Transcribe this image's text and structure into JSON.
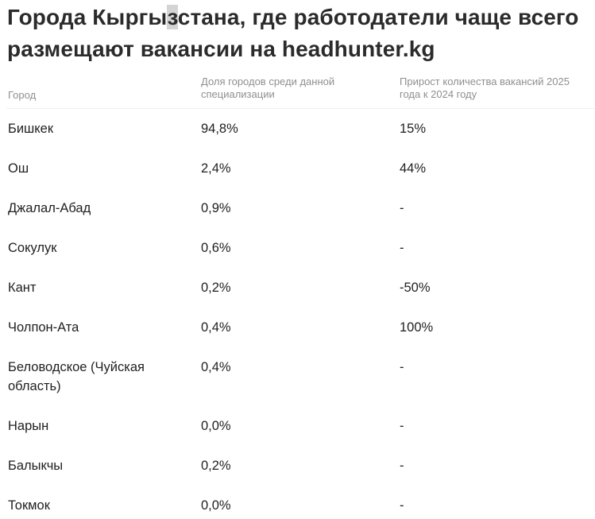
{
  "title": {
    "part1": "Города Кыргы",
    "mark": "з",
    "part2": "стана, где работодатели чаще всего размещают вакансии на headhunter.kg"
  },
  "columns": {
    "city": "Город",
    "share": "Доля городов среди данной специализации",
    "growth": "Прирост количества вакансий 2025 года к 2024 году"
  },
  "rows": [
    {
      "city": "Бишкек",
      "share": "94,8%",
      "growth": "15%"
    },
    {
      "city": "Ош",
      "share": "2,4%",
      "growth": "44%"
    },
    {
      "city": "Джалал-Абад",
      "share": "0,9%",
      "growth": "-"
    },
    {
      "city": "Сокулук",
      "share": "0,6%",
      "growth": "-"
    },
    {
      "city": "Кант",
      "share": "0,2%",
      "growth": "-50%"
    },
    {
      "city": "Чолпон-Ата",
      "share": "0,4%",
      "growth": "100%"
    },
    {
      "city": "Беловодское (Чуйская область)",
      "share": "0,4%",
      "growth": "-"
    },
    {
      "city": "Нарын",
      "share": "0,0%",
      "growth": "-"
    },
    {
      "city": "Балыкчы",
      "share": "0,2%",
      "growth": "-"
    },
    {
      "city": "Токмок",
      "share": "0,0%",
      "growth": "-"
    }
  ]
}
